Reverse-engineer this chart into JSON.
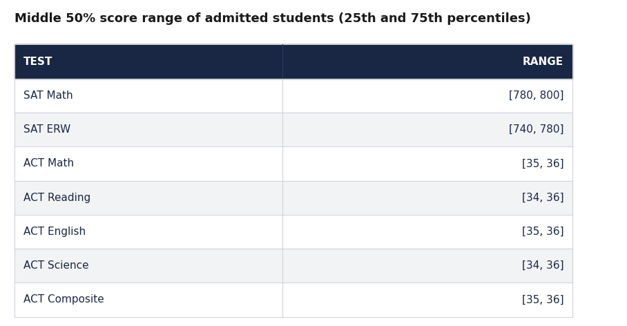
{
  "title": "Middle 50% score range of admitted students (25th and 75th percentiles)",
  "header": [
    "TEST",
    "RANGE"
  ],
  "rows": [
    [
      "SAT Math",
      "[780, 800]"
    ],
    [
      "SAT ERW",
      "[740, 780]"
    ],
    [
      "ACT Math",
      "[35, 36]"
    ],
    [
      "ACT Reading",
      "[34, 36]"
    ],
    [
      "ACT English",
      "[35, 36]"
    ],
    [
      "ACT Science",
      "[34, 36]"
    ],
    [
      "ACT Composite",
      "[35, 36]"
    ]
  ],
  "header_bg": "#1a2744",
  "header_text_color": "#ffffff",
  "row_bg_odd": "#ffffff",
  "row_bg_even": "#f2f3f5",
  "row_text_color": "#1a2744",
  "border_color": "#d0d3db",
  "title_color": "#1a1a1a",
  "title_fontsize": 13,
  "header_fontsize": 11,
  "row_fontsize": 11,
  "fig_bg": "#ffffff",
  "col_split": 0.48
}
